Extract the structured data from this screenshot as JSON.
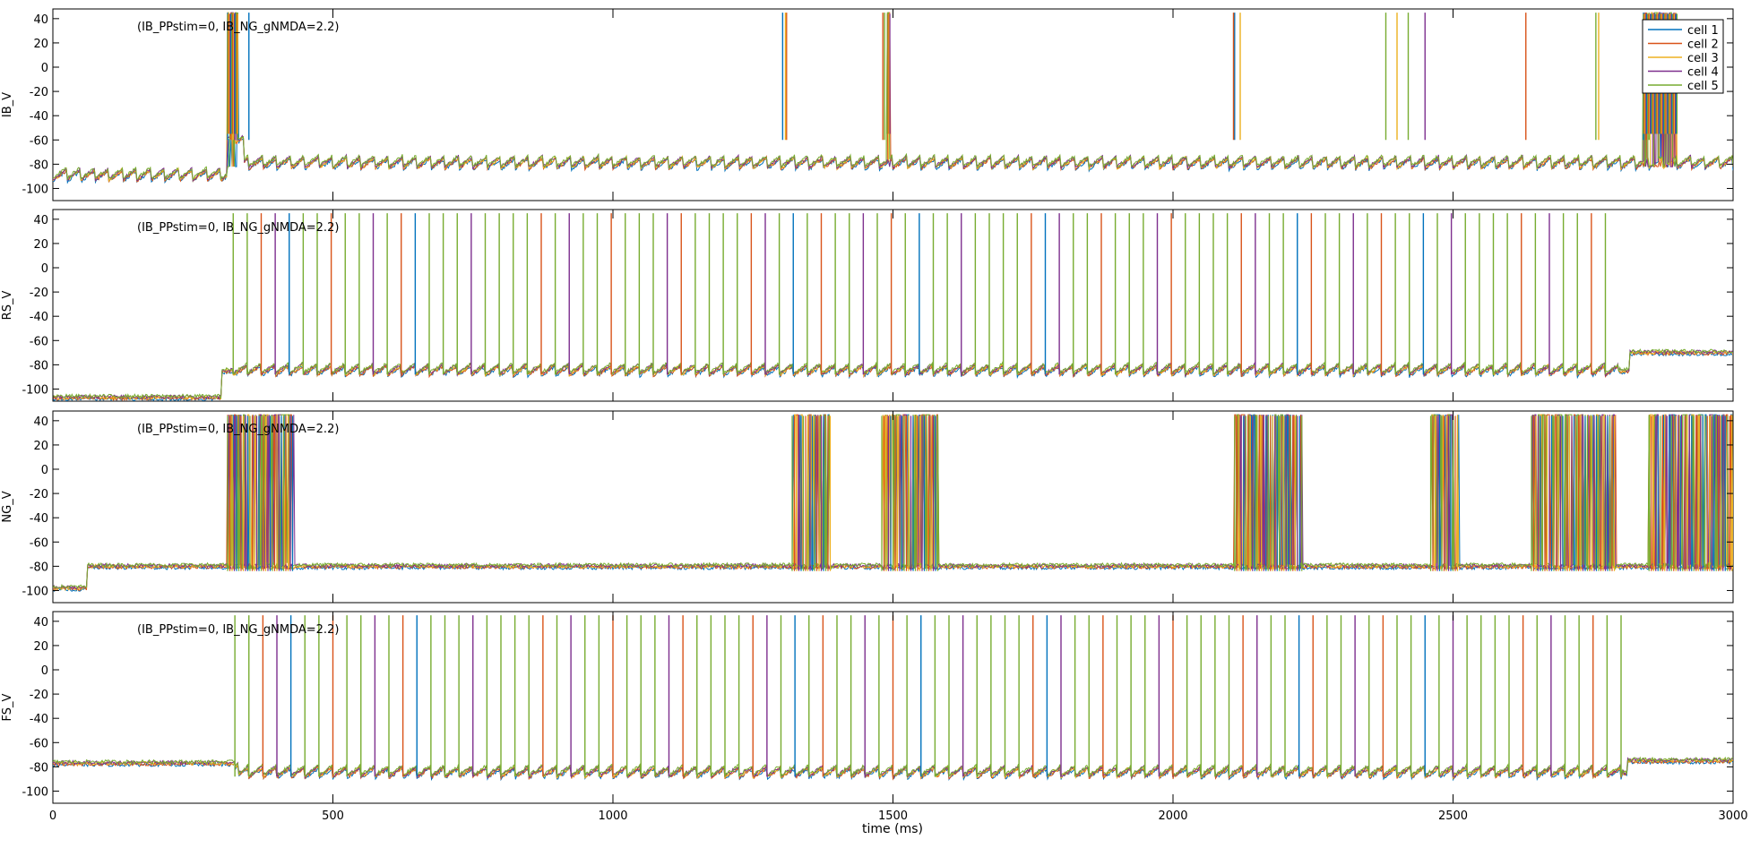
{
  "figure": {
    "xlabel": "time (ms)",
    "annotation": "(IB_PPstim=0, IB_NG_gNMDA=2.2)"
  },
  "chart_data": {
    "type": "line",
    "x": {
      "label": "time (ms)",
      "range": [
        0,
        3000
      ],
      "ticks": [
        0,
        500,
        1000,
        1500,
        2000,
        2500,
        3000
      ],
      "tick_labels": [
        "0",
        "500",
        "1000",
        "1500",
        "2000",
        "2500",
        "3000"
      ]
    },
    "y": {
      "range": [
        -110,
        48
      ],
      "ticks": [
        -100,
        -80,
        -60,
        -40,
        -20,
        0,
        20,
        40
      ],
      "tick_labels": [
        "-100",
        "-80",
        "-60",
        "-40",
        "-20",
        "0",
        "20",
        "40"
      ]
    },
    "grid": false,
    "legend": {
      "placement": "top-right",
      "entries": [
        "cell 1",
        "cell 2",
        "cell 3",
        "cell 4",
        "cell 5"
      ]
    },
    "series_colors": [
      "#0072BD",
      "#D95319",
      "#EDB120",
      "#7E2F8E",
      "#77AC30"
    ],
    "panels": [
      {
        "ylabel": "IB_V",
        "annotation": "(IB_PPstim=0, IB_NG_gNMDA=2.2)",
        "segments": [
          {
            "t": [
              0,
              310
            ],
            "level": -88
          },
          {
            "t": [
              310,
              340
            ],
            "level": -58
          },
          {
            "t": [
              340,
              3000
            ],
            "level": -78
          }
        ],
        "oscillation_ms": 25,
        "burst_windows": [
          [
            312,
            330
          ],
          [
            1490,
            1495
          ],
          [
            2840,
            2900
          ]
        ],
        "spike_times": {
          "cell 1": [
            312,
            350,
            1303,
            2110,
            2840
          ],
          "cell 2": [
            318,
            1310,
            1482,
            2108,
            2630,
            2845
          ],
          "cell 3": [
            322,
            1308,
            2120,
            2400,
            2760
          ],
          "cell 4": [
            325,
            2450
          ],
          "cell 5": [
            330,
            1485,
            2380,
            2420,
            2755,
            2850
          ]
        }
      },
      {
        "ylabel": "RS_V",
        "annotation": "(IB_PPstim=0, IB_NG_gNMDA=2.2)",
        "segments": [
          {
            "t": [
              0,
              300
            ],
            "level": -107
          },
          {
            "t": [
              300,
              2815
            ],
            "level": -85
          },
          {
            "t": [
              2815,
              3000
            ],
            "level": -70
          }
        ],
        "spike_interval_ms": 25,
        "spike_range": [
          322,
          2795
        ]
      },
      {
        "ylabel": "NG_V",
        "annotation": "(IB_PPstim=0, IB_NG_gNMDA=2.2)",
        "segments": [
          {
            "t": [
              0,
              60
            ],
            "level": -98
          },
          {
            "t": [
              60,
              3000
            ],
            "level": -80
          }
        ],
        "burst_windows": [
          [
            312,
            430
          ],
          [
            1320,
            1390
          ],
          [
            1480,
            1580
          ],
          [
            2110,
            2230
          ],
          [
            2460,
            2510
          ],
          [
            2640,
            2790
          ],
          [
            2850,
            3000
          ]
        ]
      },
      {
        "ylabel": "FS_V",
        "annotation": "(IB_PPstim=0, IB_NG_gNMDA=2.2)",
        "segments": [
          {
            "t": [
              0,
              330
            ],
            "level": -77
          },
          {
            "t": [
              330,
              2810
            ],
            "level": -85
          },
          {
            "t": [
              2810,
              3000
            ],
            "level": -75
          }
        ],
        "spike_interval_ms": 25,
        "spike_range": [
          325,
          2800
        ]
      }
    ]
  }
}
